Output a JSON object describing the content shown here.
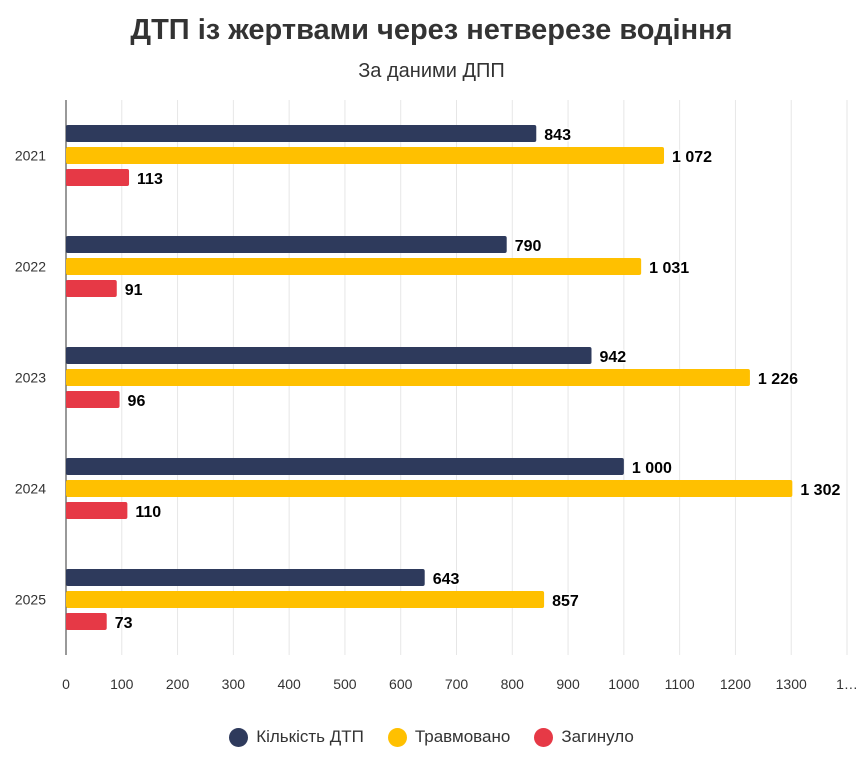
{
  "chart_data": {
    "type": "bar",
    "orientation": "horizontal",
    "title": "ДТП із жертвами через нетверезе водіння",
    "subtitle": "За даними ДПП",
    "categories": [
      "2021",
      "2022",
      "2023",
      "2024",
      "2025"
    ],
    "series": [
      {
        "name": "Кількість ДТП",
        "color": "#2e3a5c",
        "values": [
          843,
          790,
          942,
          1000,
          643
        ],
        "labels": [
          "843",
          "790",
          "942",
          "1 000",
          "643"
        ]
      },
      {
        "name": "Травмовано",
        "color": "#ffc000",
        "values": [
          1072,
          1031,
          1226,
          1302,
          857
        ],
        "labels": [
          "1 072",
          "1 031",
          "1 226",
          "1 302",
          "857"
        ]
      },
      {
        "name": "Загинуло",
        "color": "#e63946",
        "values": [
          113,
          91,
          96,
          110,
          73
        ],
        "labels": [
          "113",
          "91",
          "96",
          "110",
          "73"
        ]
      }
    ],
    "xlim": [
      0,
      1400
    ],
    "xticks": [
      "0",
      "100",
      "200",
      "300",
      "400",
      "500",
      "600",
      "700",
      "800",
      "900",
      "1000",
      "1100",
      "1200",
      "1300",
      "1…"
    ],
    "grid": true,
    "legend": "bottom"
  }
}
